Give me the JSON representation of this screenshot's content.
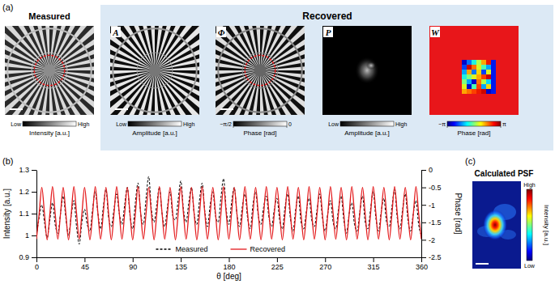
{
  "figure": {
    "panel_labels": [
      "(a)",
      "(b)",
      "(c)"
    ]
  },
  "panel_a": {
    "measured": {
      "title": "Measured",
      "colorbar": {
        "low": "Low",
        "high": "High",
        "label": "Intensity [a.u.]"
      }
    },
    "recovered": {
      "title": "Recovered",
      "panels": [
        {
          "symbol": "A",
          "colorbar": {
            "low": "Low",
            "high": "High",
            "label": "Amplitude [a.u.]"
          }
        },
        {
          "symbol": "Φ",
          "colorbar": {
            "range": [
              -1.5708,
              0
            ],
            "ticks": [
              {
                "value": -1.5708,
                "label": "−π/2"
              },
              0
            ],
            "label": "Phase [rad]"
          }
        },
        {
          "symbol": "P",
          "colorbar": {
            "low": "Low",
            "high": "High",
            "label": "Amplitude [a.u.]"
          }
        },
        {
          "symbol": "W",
          "colorbar": {
            "range": [
              -3.1416,
              3.1416
            ],
            "ticks": [
              {
                "value": -3.1416,
                "label": "−π"
              },
              {
                "value": 3.1416,
                "label": "π"
              }
            ],
            "label": "Phase [rad]"
          }
        }
      ]
    }
  },
  "chart_data": {
    "type": "line",
    "xlabel": "θ [deg]",
    "ylabel": "Intensity [a.u.]",
    "y2label": "Phase [rad]",
    "legend": "bottom",
    "xlim": [
      0,
      360
    ],
    "xticks": [
      0,
      45,
      90,
      135,
      180,
      225,
      270,
      315,
      360
    ],
    "ylim": [
      0.9,
      1.3
    ],
    "yticks": [
      0.9,
      1,
      1.1,
      1.2,
      1.3
    ],
    "y2lim": [
      -2.5,
      0
    ],
    "y2ticks": [
      0,
      -0.5,
      -1,
      -1.5,
      -2,
      -2.5
    ],
    "x": [
      0,
      2.5,
      5,
      7.5,
      10,
      12.5,
      15,
      17.5,
      20,
      22.5,
      25,
      27.5,
      30,
      32.5,
      35,
      37.5,
      40,
      42.5,
      45,
      47.5,
      50,
      52.5,
      55,
      57.5,
      60,
      62.5,
      65,
      67.5,
      70,
      72.5,
      75,
      77.5,
      80,
      82.5,
      85,
      87.5,
      90,
      92.5,
      95,
      97.5,
      100,
      102.5,
      105,
      107.5,
      110,
      112.5,
      115,
      117.5,
      120,
      122.5,
      125,
      127.5,
      130,
      132.5,
      135,
      137.5,
      140,
      142.5,
      145,
      147.5,
      150,
      152.5,
      155,
      157.5,
      160,
      162.5,
      165,
      167.5,
      170,
      172.5,
      175,
      177.5,
      180,
      182.5,
      185,
      187.5,
      190,
      192.5,
      195,
      197.5,
      200,
      202.5,
      205,
      207.5,
      210,
      212.5,
      215,
      217.5,
      220,
      222.5,
      225,
      227.5,
      230,
      232.5,
      235,
      237.5,
      240,
      242.5,
      245,
      247.5,
      250,
      252.5,
      255,
      257.5,
      260,
      262.5,
      265,
      267.5,
      270,
      272.5,
      275,
      277.5,
      280,
      282.5,
      285,
      287.5,
      290,
      292.5,
      295,
      297.5,
      300,
      302.5,
      305,
      307.5,
      310,
      312.5,
      315,
      317.5,
      320,
      322.5,
      325,
      327.5,
      330,
      332.5,
      335,
      337.5,
      340,
      342.5,
      345,
      347.5,
      350,
      352.5,
      355,
      357.5,
      360
    ],
    "series": [
      {
        "name": "Measured",
        "color": "#000000",
        "line_style": "dashed",
        "values": [
          1.0,
          1.08,
          1.14,
          1.06,
          0.99,
          1.07,
          1.15,
          1.05,
          1.01,
          1.1,
          1.18,
          1.08,
          1.0,
          1.09,
          1.16,
          1.04,
          0.96,
          1.06,
          1.12,
          1.05,
          1.02,
          1.12,
          1.2,
          1.1,
          1.03,
          1.13,
          1.21,
          1.08,
          1.04,
          1.12,
          1.19,
          1.1,
          1.05,
          1.14,
          1.22,
          1.09,
          1.03,
          1.15,
          1.24,
          1.1,
          1.05,
          1.17,
          1.27,
          1.12,
          1.06,
          1.14,
          1.22,
          1.1,
          1.04,
          1.13,
          1.2,
          1.09,
          1.07,
          1.16,
          1.25,
          1.12,
          1.06,
          1.15,
          1.22,
          1.1,
          1.05,
          1.16,
          1.24,
          1.11,
          1.04,
          1.14,
          1.2,
          1.09,
          1.06,
          1.17,
          1.26,
          1.12,
          1.05,
          1.15,
          1.22,
          1.1,
          1.04,
          1.13,
          1.19,
          1.08,
          1.03,
          1.14,
          1.2,
          1.09,
          1.05,
          1.13,
          1.18,
          1.08,
          1.04,
          1.12,
          1.17,
          1.07,
          1.03,
          1.13,
          1.19,
          1.08,
          1.02,
          1.12,
          1.18,
          1.06,
          1.03,
          1.11,
          1.17,
          1.07,
          1.04,
          1.12,
          1.19,
          1.08,
          1.02,
          1.1,
          1.16,
          1.06,
          1.03,
          1.12,
          1.18,
          1.07,
          1.01,
          1.1,
          1.15,
          1.05,
          1.02,
          1.11,
          1.18,
          1.06,
          1.03,
          1.12,
          1.2,
          1.08,
          1.02,
          1.11,
          1.17,
          1.06,
          1.04,
          1.13,
          1.21,
          1.08,
          1.03,
          1.12,
          1.19,
          1.07,
          1.02,
          1.1,
          1.16,
          1.05,
          1.0
        ]
      },
      {
        "name": "Recovered",
        "color": "#e41a1c",
        "line_style": "solid",
        "axis": "y2",
        "values": [
          -1.98,
          -1.25,
          -0.5,
          -1.25,
          -2.0,
          -1.27,
          -0.48,
          -1.24,
          -1.98,
          -1.25,
          -0.5,
          -1.25,
          -2.0,
          -1.27,
          -0.48,
          -1.24,
          -1.98,
          -1.25,
          -0.5,
          -1.25,
          -2.0,
          -1.27,
          -0.48,
          -1.24,
          -1.98,
          -1.25,
          -0.5,
          -1.25,
          -2.0,
          -1.27,
          -0.48,
          -1.24,
          -1.98,
          -1.25,
          -0.5,
          -1.25,
          -2.0,
          -1.27,
          -0.48,
          -1.24,
          -1.98,
          -1.25,
          -0.5,
          -1.25,
          -2.0,
          -1.27,
          -0.48,
          -1.24,
          -1.98,
          -1.25,
          -0.5,
          -1.25,
          -2.0,
          -1.27,
          -0.48,
          -1.24,
          -1.98,
          -1.25,
          -0.5,
          -1.25,
          -2.0,
          -1.27,
          -0.48,
          -1.24,
          -1.98,
          -1.25,
          -0.5,
          -1.25,
          -2.0,
          -1.27,
          -0.48,
          -1.24,
          -1.98,
          -1.25,
          -0.5,
          -1.25,
          -2.0,
          -1.27,
          -0.48,
          -1.24,
          -1.98,
          -1.25,
          -0.5,
          -1.25,
          -2.0,
          -1.27,
          -0.48,
          -1.24,
          -1.98,
          -1.25,
          -0.5,
          -1.25,
          -2.0,
          -1.27,
          -0.48,
          -1.24,
          -1.98,
          -1.25,
          -0.5,
          -1.25,
          -2.0,
          -1.27,
          -0.48,
          -1.24,
          -1.98,
          -1.25,
          -0.5,
          -1.25,
          -2.0,
          -1.27,
          -0.48,
          -1.24,
          -1.98,
          -1.25,
          -0.5,
          -1.25,
          -2.0,
          -1.27,
          -0.48,
          -1.24,
          -1.98,
          -1.25,
          -0.5,
          -1.25,
          -2.0,
          -1.27,
          -0.48,
          -1.24,
          -1.98,
          -1.25,
          -0.5,
          -1.25,
          -2.0,
          -1.27,
          -0.48,
          -1.24,
          -1.98,
          -1.25,
          -0.5,
          -1.25,
          -2.0,
          -1.27,
          -0.48,
          -1.24,
          -1.98
        ]
      }
    ]
  },
  "panel_c": {
    "title": "Calculated PSF",
    "colorbar": {
      "low": "Low",
      "high": "High",
      "label": "Intensity [a.u.]"
    }
  }
}
